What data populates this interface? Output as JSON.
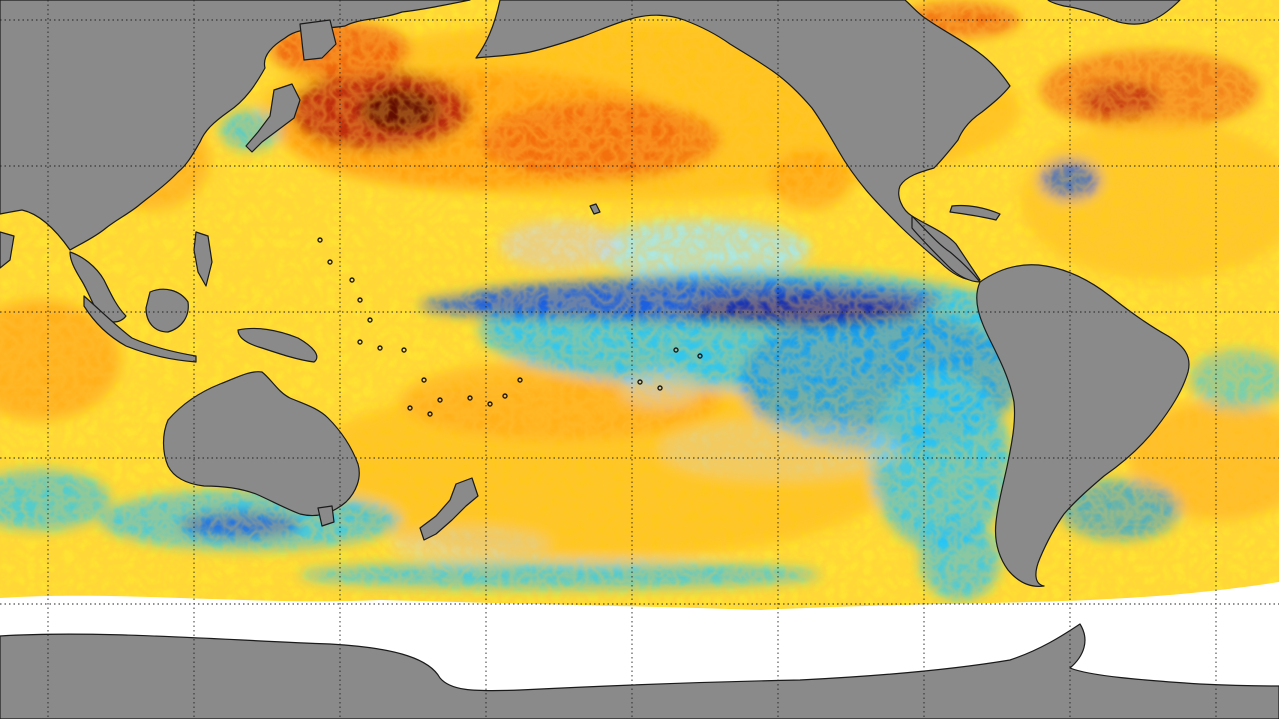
{
  "map": {
    "projection": "equirectangular-pacific-centered",
    "colors": {
      "land": "#8a8a8a",
      "coast": "#1a1a1a",
      "sea_ice": "#ffffff",
      "neutral": "#d4d4d4",
      "warm_light": "#ffe233",
      "warm": "#ffc21a",
      "warm_mid": "#ff9c10",
      "warm_strong": "#f06010",
      "warm_extreme": "#b41a08",
      "hot_core": "#5a0505",
      "cool_light": "#9fe7ff",
      "cool": "#1ec4ff",
      "cool_mid": "#169ef0",
      "cool_strong": "#1f5fe0",
      "cool_extreme": "#1a2aa8",
      "graticule": "#222222"
    }
  }
}
